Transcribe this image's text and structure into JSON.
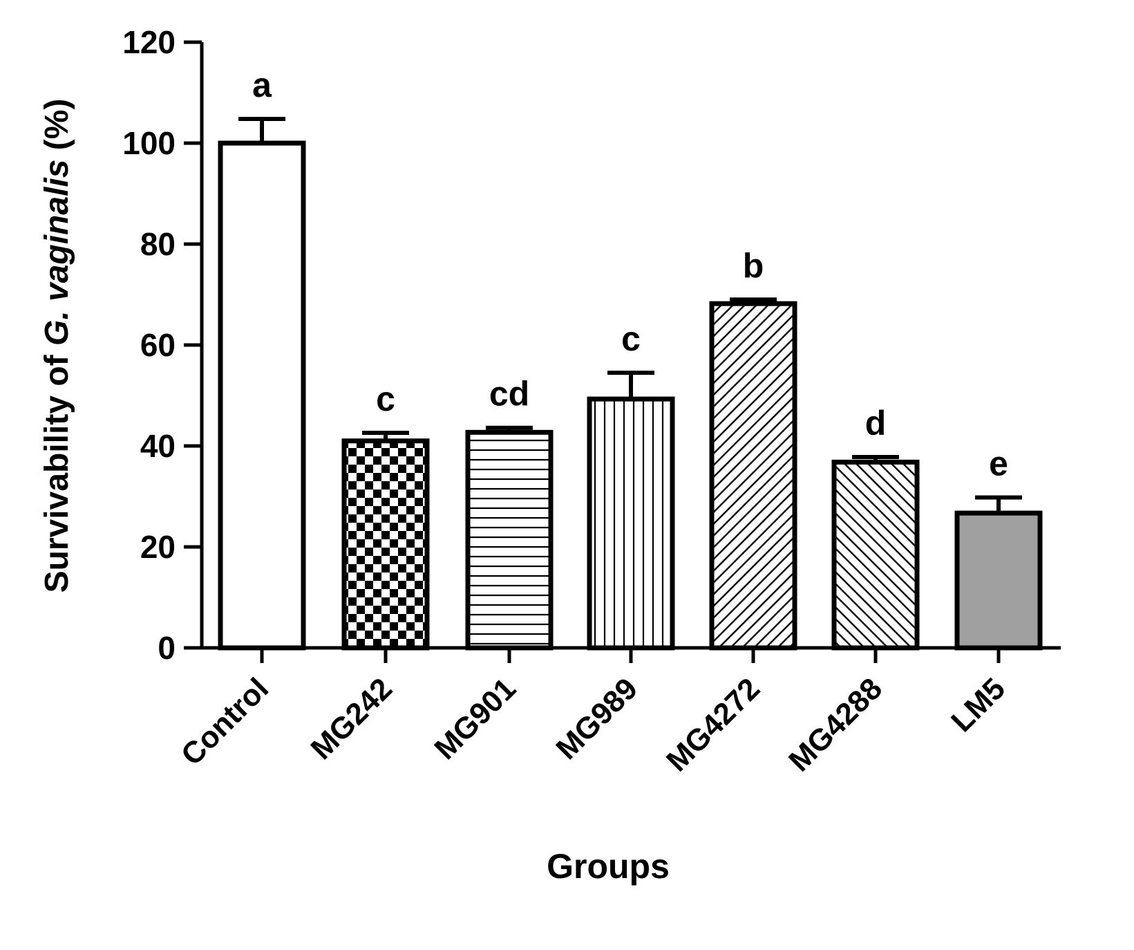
{
  "chart_data": {
    "type": "bar",
    "title": "",
    "xlabel": "Groups",
    "ylabel": {
      "prefix": "Survivability of ",
      "italic": "G. vaginalis",
      "suffix": " (%)"
    },
    "ylim": [
      0,
      120
    ],
    "yticks": [
      "0",
      "20",
      "40",
      "60",
      "80",
      "100",
      "120"
    ],
    "ytick_values": [
      0,
      20,
      40,
      60,
      80,
      100,
      120
    ],
    "grid": false,
    "legend": "none",
    "categories": [
      "Control",
      "MG242",
      "MG901",
      "MG989",
      "MG4272",
      "MG4288",
      "LM5"
    ],
    "values": [
      100,
      41,
      42.7,
      49.3,
      68.2,
      36.8,
      26.7
    ],
    "errors": [
      4.8,
      1.6,
      0.9,
      5.2,
      0.8,
      1.0,
      3.1
    ],
    "significance": [
      "a",
      "c",
      "cd",
      "c",
      "b",
      "d",
      "e"
    ],
    "patterns": [
      "none",
      "checker",
      "horizontal",
      "vertical",
      "diagonal-dense",
      "diagonal",
      "solid-gray"
    ],
    "colors": {
      "bar_fill": "#ffffff",
      "stroke": "#000000",
      "lm5_fill": "#a0a0a0"
    }
  }
}
